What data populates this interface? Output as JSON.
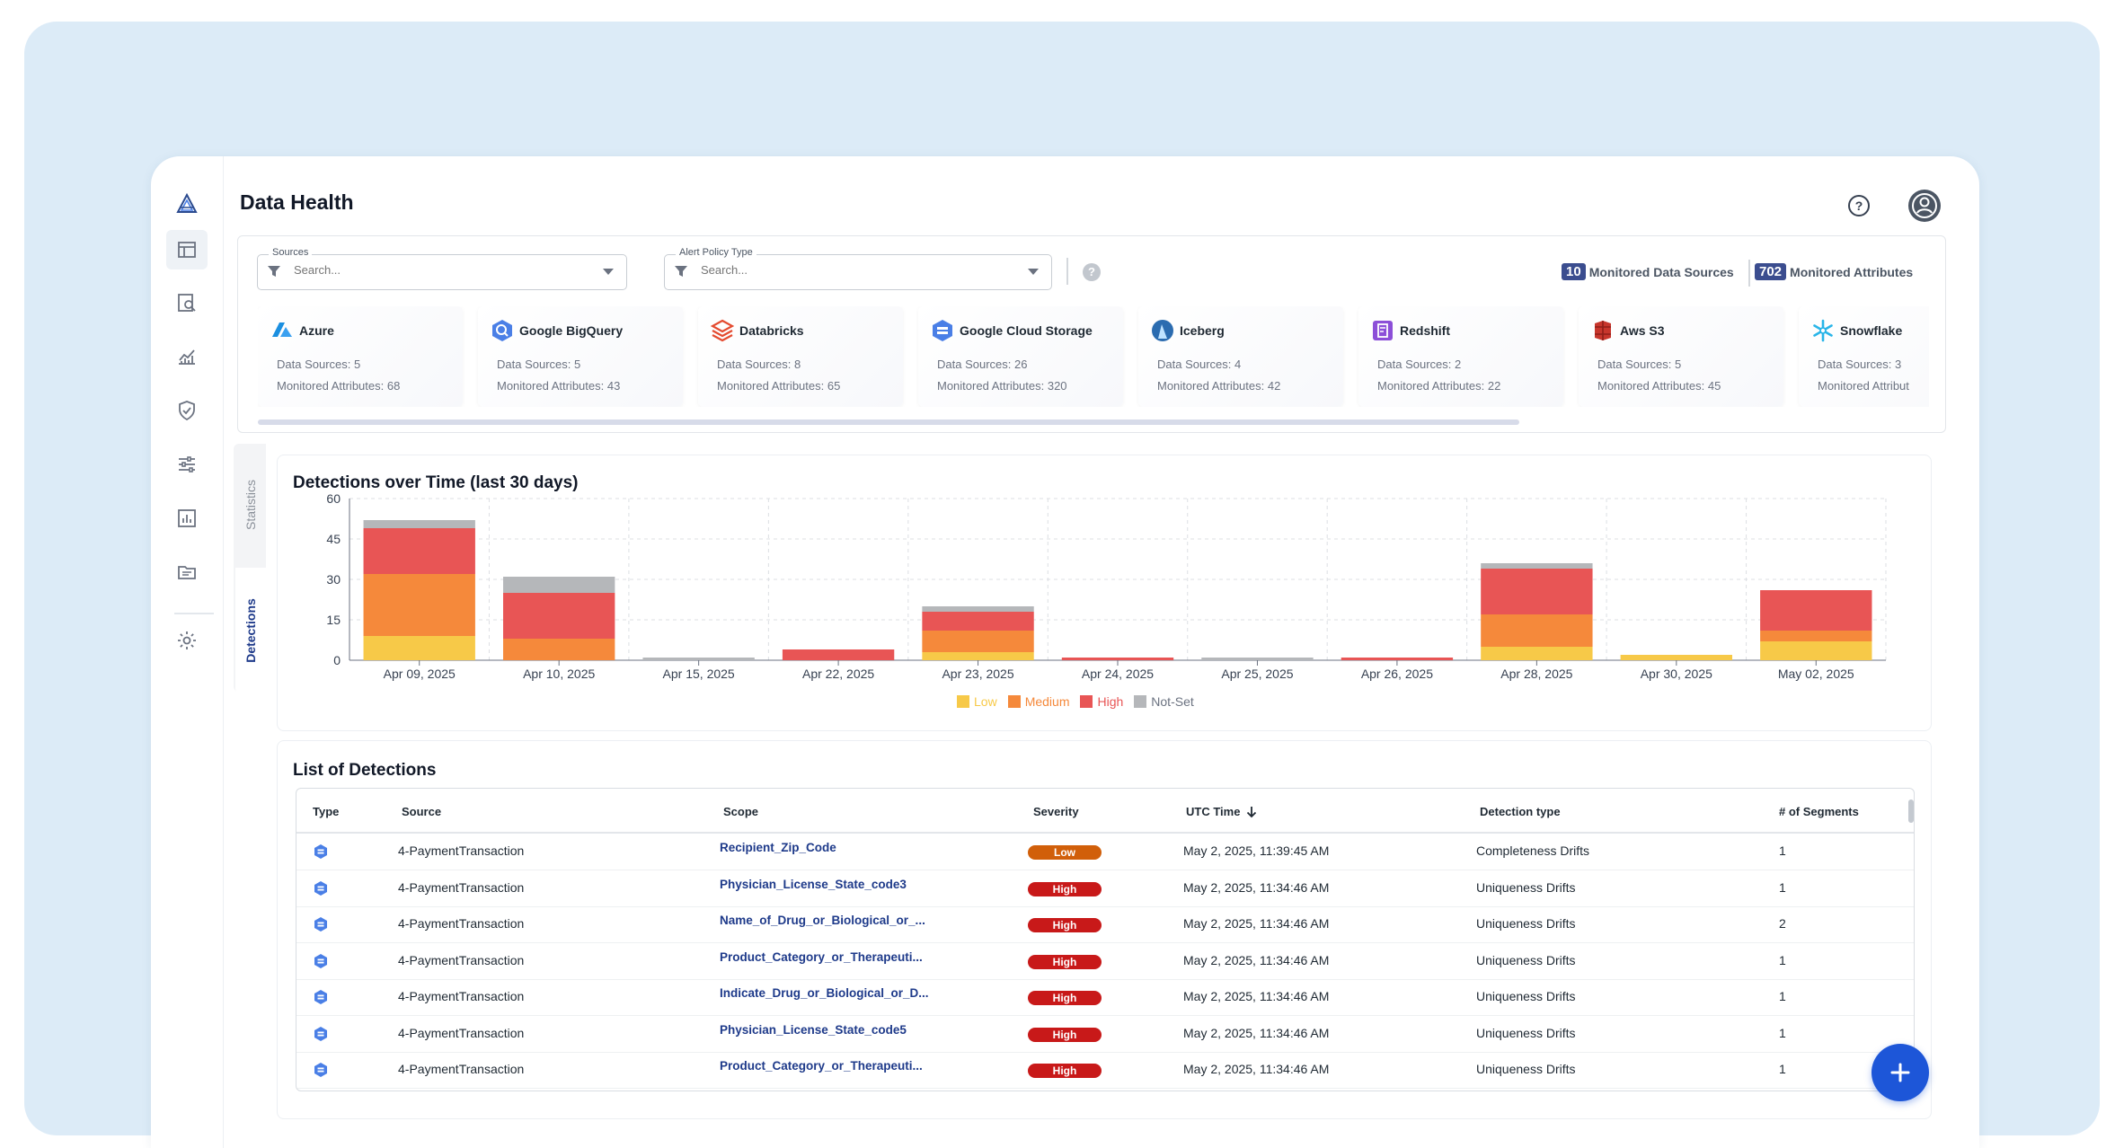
{
  "app": {
    "title": "Data Health"
  },
  "sidebar": {
    "items": [
      {
        "name": "logo-icon"
      },
      {
        "name": "table-icon"
      },
      {
        "name": "search-doc-icon"
      },
      {
        "name": "chart-line-icon"
      },
      {
        "name": "shield-icon"
      },
      {
        "name": "sliders-icon"
      },
      {
        "name": "bar-report-icon"
      },
      {
        "name": "folder-icon"
      },
      {
        "name": "gear-icon"
      }
    ]
  },
  "filters": {
    "sources": {
      "label": "Sources",
      "placeholder": "Search..."
    },
    "alert_policy": {
      "label": "Alert Policy Type",
      "placeholder": "Search..."
    },
    "help": "?"
  },
  "stats": {
    "sources_count": "10",
    "sources_label": "Monitored Data Sources",
    "attributes_count": "702",
    "attributes_label": "Monitored Attributes"
  },
  "tiles": [
    {
      "name": "Azure",
      "ds": "Data Sources: 5",
      "ma": "Monitored Attributes: 68",
      "icon": "azure-icon",
      "color": "#1b8fe0"
    },
    {
      "name": "Google BigQuery",
      "ds": "Data Sources: 5",
      "ma": "Monitored Attributes: 43",
      "icon": "bigquery-icon",
      "color": "#4a7fe6"
    },
    {
      "name": "Databricks",
      "ds": "Data Sources: 8",
      "ma": "Monitored Attributes: 65",
      "icon": "databricks-icon",
      "color": "#e44a2f"
    },
    {
      "name": "Google Cloud Storage",
      "ds": "Data Sources: 26",
      "ma": "Monitored Attributes: 320",
      "icon": "gcs-icon",
      "color": "#4a7fe6"
    },
    {
      "name": "Iceberg",
      "ds": "Data Sources: 4",
      "ma": "Monitored Attributes: 42",
      "icon": "iceberg-icon",
      "color": "#2b6cb0"
    },
    {
      "name": "Redshift",
      "ds": "Data Sources: 2",
      "ma": "Monitored Attributes: 22",
      "icon": "redshift-icon",
      "color": "#8c4fd8"
    },
    {
      "name": "Aws S3",
      "ds": "Data Sources: 5",
      "ma": "Monitored Attributes: 45",
      "icon": "aws-s3-icon",
      "color": "#c7362c"
    },
    {
      "name": "Snowflake",
      "ds": "Data Sources: 3",
      "ma": "Monitored Attribut",
      "icon": "snowflake-icon",
      "color": "#29b5e8"
    }
  ],
  "tabs": {
    "statistics": "Statistics",
    "detections": "Detections"
  },
  "chart_data": {
    "type": "bar",
    "title": "Detections over Time (last 30 days)",
    "categories": [
      "Apr 09, 2025",
      "Apr 10, 2025",
      "Apr 15, 2025",
      "Apr 22, 2025",
      "Apr 23, 2025",
      "Apr 24, 2025",
      "Apr 25, 2025",
      "Apr 26, 2025",
      "Apr 28, 2025",
      "Apr 30, 2025",
      "May 02, 2025"
    ],
    "series": [
      {
        "name": "Low",
        "color": "#f7c948",
        "values": [
          9,
          0,
          0,
          0,
          3,
          0,
          0,
          0,
          5,
          2,
          7
        ]
      },
      {
        "name": "Medium",
        "color": "#f5893b",
        "values": [
          23,
          8,
          0,
          0,
          8,
          0,
          0,
          0,
          12,
          0,
          4
        ]
      },
      {
        "name": "High",
        "color": "#e85555",
        "values": [
          17,
          17,
          0,
          4,
          7,
          1,
          0,
          1,
          17,
          0,
          15
        ]
      },
      {
        "name": "Not-Set",
        "color": "#b5b7ba",
        "values": [
          3,
          6,
          1,
          0,
          2,
          0,
          1,
          0,
          2,
          0,
          0
        ]
      }
    ],
    "stacked": true,
    "ylim": [
      0,
      60
    ],
    "yticks": [
      0,
      15,
      30,
      45,
      60
    ],
    "grid": true,
    "legend": "bottom-center"
  },
  "list": {
    "title": "List of Detections",
    "columns": [
      "Type",
      "Source",
      "Scope",
      "Severity",
      "UTC Time",
      "Detection type",
      "# of Segments"
    ],
    "rows": [
      {
        "source": "4-PaymentTransaction",
        "scope": "Recipient_Zip_Code",
        "severity": "Low",
        "time": "May 2, 2025, 11:39:45 AM",
        "dtype": "Completeness Drifts",
        "segments": "1"
      },
      {
        "source": "4-PaymentTransaction",
        "scope": "Physician_License_State_code3",
        "severity": "High",
        "time": "May 2, 2025, 11:34:46 AM",
        "dtype": "Uniqueness Drifts",
        "segments": "1"
      },
      {
        "source": "4-PaymentTransaction",
        "scope": "Name_of_Drug_or_Biological_or_...",
        "severity": "High",
        "time": "May 2, 2025, 11:34:46 AM",
        "dtype": "Uniqueness Drifts",
        "segments": "2"
      },
      {
        "source": "4-PaymentTransaction",
        "scope": "Product_Category_or_Therapeuti...",
        "severity": "High",
        "time": "May 2, 2025, 11:34:46 AM",
        "dtype": "Uniqueness Drifts",
        "segments": "1"
      },
      {
        "source": "4-PaymentTransaction",
        "scope": "Indicate_Drug_or_Biological_or_D...",
        "severity": "High",
        "time": "May 2, 2025, 11:34:46 AM",
        "dtype": "Uniqueness Drifts",
        "segments": "1"
      },
      {
        "source": "4-PaymentTransaction",
        "scope": "Physician_License_State_code5",
        "severity": "High",
        "time": "May 2, 2025, 11:34:46 AM",
        "dtype": "Uniqueness Drifts",
        "segments": "1"
      },
      {
        "source": "4-PaymentTransaction",
        "scope": "Product_Category_or_Therapeuti...",
        "severity": "High",
        "time": "May 2, 2025, 11:34:46 AM",
        "dtype": "Uniqueness Drifts",
        "segments": "1"
      }
    ]
  },
  "fab": {
    "label": "+"
  }
}
